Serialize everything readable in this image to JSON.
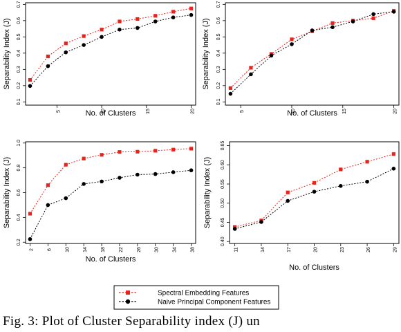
{
  "chart_data": [
    {
      "type": "line",
      "xlabel": "No. of Clusters",
      "ylabel": "Separability Index (J)",
      "x": [
        2,
        4,
        6,
        8,
        10,
        12,
        14,
        16,
        18,
        20
      ],
      "xticks": [
        "5",
        "10",
        "15",
        "20"
      ],
      "xtick_values": [
        5,
        10,
        15,
        20
      ],
      "yticks": [
        "0.1",
        "0.2",
        "0.3",
        "0.4",
        "0.5",
        "0.6",
        "0.7"
      ],
      "ytick_values": [
        0.1,
        0.2,
        0.3,
        0.4,
        0.5,
        0.6,
        0.7
      ],
      "xlim": [
        1.5,
        20.5
      ],
      "ylim": [
        0.08,
        0.71
      ],
      "grid": false,
      "series": [
        {
          "name": "Spectral Embedding Features",
          "color": "#e8231c",
          "values": [
            0.235,
            0.38,
            0.46,
            0.505,
            0.545,
            0.595,
            0.61,
            0.63,
            0.655,
            0.675
          ]
        },
        {
          "name": "Naive Principal Component Features",
          "color": "#000000",
          "values": [
            0.198,
            0.32,
            0.405,
            0.45,
            0.5,
            0.545,
            0.555,
            0.595,
            0.62,
            0.635
          ]
        }
      ]
    },
    {
      "type": "line",
      "xlabel": "No. of Clusters",
      "ylabel": "Separability Index (J)",
      "x": [
        4,
        6,
        8,
        10,
        12,
        14,
        16,
        18,
        20
      ],
      "xticks": [
        "5",
        "10",
        "15",
        "20"
      ],
      "xtick_values": [
        5,
        10,
        15,
        20
      ],
      "yticks": [
        "0.1",
        "0.2",
        "0.3",
        "0.4",
        "0.5",
        "0.6",
        "0.7"
      ],
      "ytick_values": [
        0.1,
        0.2,
        0.3,
        0.4,
        0.5,
        0.6,
        0.7
      ],
      "xlim": [
        3.5,
        20.5
      ],
      "ylim": [
        0.08,
        0.71
      ],
      "grid": false,
      "series": [
        {
          "name": "Spectral Embedding Features",
          "color": "#e8231c",
          "values": [
            0.185,
            0.31,
            0.395,
            0.485,
            0.535,
            0.585,
            0.6,
            0.615,
            0.66
          ]
        },
        {
          "name": "Naive Principal Component Features",
          "color": "#000000",
          "values": [
            0.15,
            0.27,
            0.385,
            0.455,
            0.54,
            0.56,
            0.595,
            0.64,
            0.655
          ]
        }
      ]
    },
    {
      "type": "line",
      "xlabel": "No. of Clusters",
      "ylabel": "Separability Index (J)",
      "x": [
        2,
        6,
        10,
        14,
        18,
        22,
        26,
        30,
        34,
        38
      ],
      "xticks": [
        "2",
        "6",
        "10",
        "14",
        "18",
        "22",
        "26",
        "30",
        "34",
        "38"
      ],
      "xtick_values": [
        2,
        6,
        10,
        14,
        18,
        22,
        26,
        30,
        34,
        38
      ],
      "yticks": [
        "0.2",
        "0.4",
        "0.6",
        "0.8",
        "1.0"
      ],
      "ytick_values": [
        0.2,
        0.4,
        0.6,
        0.8,
        1.0
      ],
      "xlim": [
        1.0,
        39.0
      ],
      "ylim": [
        0.19,
        1.01
      ],
      "grid": false,
      "series": [
        {
          "name": "Spectral Embedding Features",
          "color": "#e8231c",
          "values": [
            0.43,
            0.66,
            0.825,
            0.875,
            0.905,
            0.928,
            0.93,
            0.938,
            0.947,
            0.955
          ]
        },
        {
          "name": "Naive Principal Component Features",
          "color": "#000000",
          "values": [
            0.225,
            0.5,
            0.555,
            0.67,
            0.69,
            0.72,
            0.745,
            0.75,
            0.765,
            0.78
          ]
        }
      ]
    },
    {
      "type": "line",
      "xlabel": "No. of Clusters",
      "ylabel": "Separability Index (J)",
      "x": [
        11,
        14,
        17,
        20,
        23,
        26,
        29
      ],
      "xticks": [
        "11",
        "14",
        "17",
        "20",
        "23",
        "26",
        "29"
      ],
      "xtick_values": [
        11,
        14,
        17,
        20,
        23,
        26,
        29
      ],
      "yticks": [
        "0.40",
        "0.45",
        "0.50",
        "0.55",
        "0.60",
        "0.65"
      ],
      "ytick_values": [
        0.4,
        0.45,
        0.5,
        0.55,
        0.6,
        0.65
      ],
      "xlim": [
        10.4,
        29.6
      ],
      "ylim": [
        0.395,
        0.66
      ],
      "grid": false,
      "series": [
        {
          "name": "Spectral Embedding Features",
          "color": "#e8231c",
          "values": [
            0.438,
            0.455,
            0.528,
            0.553,
            0.588,
            0.608,
            0.628
          ]
        },
        {
          "name": "Naive Principal Component Features",
          "color": "#000000",
          "values": [
            0.433,
            0.451,
            0.506,
            0.53,
            0.545,
            0.556,
            0.59
          ]
        }
      ]
    }
  ],
  "legend": {
    "placement": "bottom-center",
    "items": [
      {
        "label": "Spectral Embedding Features",
        "color": "#e8231c"
      },
      {
        "label": "Naive Principal Component Features",
        "color": "#000000"
      }
    ]
  },
  "caption": "Fig. 3: Plot of Cluster Separability index (J) un"
}
